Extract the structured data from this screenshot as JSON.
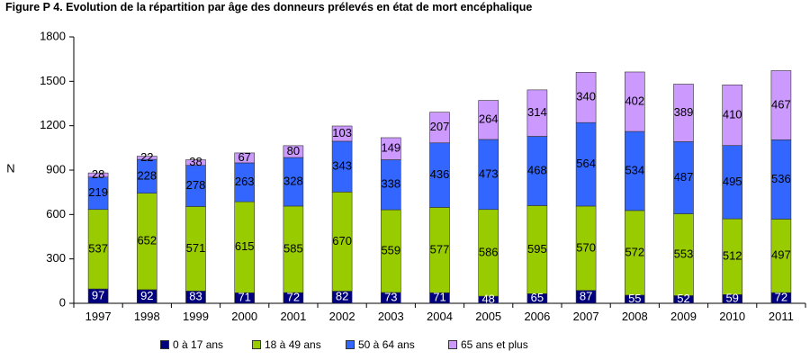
{
  "figure_title": "Figure P 4. Evolution de la répartition par âge des donneurs prélevés en état de mort encéphalique",
  "chart_data": {
    "type": "bar",
    "stacked": true,
    "title": "Figure P 4. Evolution de la répartition par âge des donneurs prélevés en état de mort encéphalique",
    "xlabel": "",
    "ylabel": "N",
    "ylim": [
      0,
      1800
    ],
    "yticks": [
      0,
      300,
      600,
      900,
      1200,
      1500,
      1800
    ],
    "grid": false,
    "legend_position": "bottom",
    "categories": [
      "1997",
      "1998",
      "1999",
      "2000",
      "2001",
      "2002",
      "2003",
      "2004",
      "2005",
      "2006",
      "2007",
      "2008",
      "2009",
      "2010",
      "2011"
    ],
    "series": [
      {
        "name": "0 à 17 ans",
        "color": "#00007f",
        "label_color": "#ffffff",
        "values": [
          97,
          92,
          83,
          71,
          72,
          82,
          73,
          71,
          48,
          65,
          87,
          55,
          52,
          59,
          72
        ]
      },
      {
        "name": "18 à 49 ans",
        "color": "#99cc00",
        "label_color": "#000000",
        "values": [
          537,
          652,
          571,
          615,
          585,
          670,
          559,
          577,
          586,
          595,
          570,
          572,
          553,
          512,
          497
        ]
      },
      {
        "name": "50 à 64 ans",
        "color": "#3366ff",
        "label_color": "#000000",
        "values": [
          219,
          228,
          278,
          263,
          328,
          343,
          338,
          436,
          473,
          468,
          564,
          534,
          487,
          495,
          536
        ]
      },
      {
        "name": "65 ans et plus",
        "color": "#cc99ff",
        "label_color": "#000000",
        "values": [
          28,
          22,
          38,
          67,
          80,
          103,
          149,
          207,
          264,
          314,
          340,
          402,
          389,
          410,
          467
        ]
      }
    ]
  }
}
